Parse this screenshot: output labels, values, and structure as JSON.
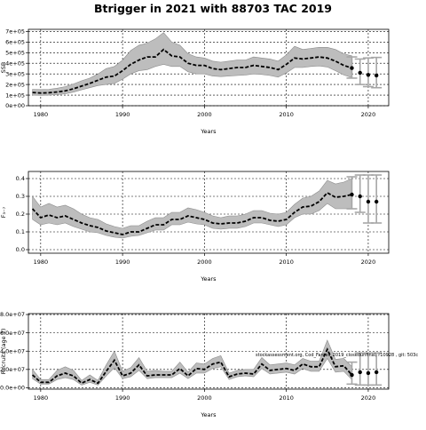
{
  "page_title": "Btrigger in 2021 with 88703 TAC 2019",
  "annotation": "stockassessment.org, Cod_Faroes_2019_closedunfinal, r10928 , git: 503c",
  "colors": {
    "band": "#bdbdbd",
    "band_edge": "#8c8c8c",
    "line": "#000000",
    "forecast_interval": "#a6a6a6",
    "point": "#000000",
    "grid": "#000000"
  },
  "chart_data": [
    {
      "type": "line",
      "title": "",
      "xlabel": "Years",
      "ylabel": "SSB",
      "xlim": [
        1978.5,
        2022.5
      ],
      "ylim": [
        0,
        720000
      ],
      "x_ticks": [
        1980,
        1990,
        2000,
        2010,
        2020
      ],
      "y_ticks": [
        0,
        100000,
        200000,
        300000,
        400000,
        500000,
        600000,
        700000
      ],
      "y_tick_labels": [
        "0e+00",
        "1e+05",
        "2e+05",
        "3e+05",
        "4e+05",
        "5e+05",
        "6e+05",
        "7e+05"
      ],
      "grid": true,
      "x": [
        1979,
        1980,
        1981,
        1982,
        1983,
        1984,
        1985,
        1986,
        1987,
        1988,
        1989,
        1990,
        1991,
        1992,
        1993,
        1994,
        1995,
        1996,
        1997,
        1998,
        1999,
        2000,
        2001,
        2002,
        2003,
        2004,
        2005,
        2006,
        2007,
        2008,
        2009,
        2010,
        2011,
        2012,
        2013,
        2014,
        2015,
        2016,
        2017,
        2018
      ],
      "estimate": [
        125000,
        120000,
        122000,
        130000,
        140000,
        160000,
        185000,
        210000,
        240000,
        270000,
        280000,
        330000,
        390000,
        430000,
        460000,
        460000,
        530000,
        470000,
        460000,
        400000,
        380000,
        380000,
        350000,
        340000,
        350000,
        360000,
        360000,
        380000,
        370000,
        360000,
        340000,
        390000,
        450000,
        440000,
        450000,
        460000,
        450000,
        420000,
        380000,
        355000
      ],
      "lower": [
        100000,
        98000,
        100000,
        105000,
        112000,
        128000,
        150000,
        170000,
        190000,
        200000,
        210000,
        250000,
        300000,
        330000,
        340000,
        370000,
        390000,
        370000,
        370000,
        320000,
        300000,
        300000,
        280000,
        275000,
        280000,
        285000,
        290000,
        300000,
        295000,
        285000,
        270000,
        310000,
        360000,
        360000,
        370000,
        375000,
        365000,
        330000,
        290000,
        265000
      ],
      "upper": [
        155000,
        152000,
        155000,
        165000,
        180000,
        205000,
        235000,
        260000,
        300000,
        350000,
        370000,
        430000,
        520000,
        570000,
        590000,
        630000,
        690000,
        600000,
        570000,
        490000,
        460000,
        450000,
        420000,
        410000,
        420000,
        430000,
        430000,
        460000,
        450000,
        440000,
        420000,
        480000,
        560000,
        530000,
        540000,
        550000,
        550000,
        530000,
        490000,
        470000
      ],
      "forecast": [
        {
          "year": 2018,
          "value": 355000,
          "low": 260000,
          "high": 460000
        },
        {
          "year": 2019,
          "value": 310000,
          "low": 200000,
          "high": 440000
        },
        {
          "year": 2020,
          "value": 290000,
          "low": 180000,
          "high": 450000
        },
        {
          "year": 2021,
          "value": 285000,
          "low": 170000,
          "high": 455000
        }
      ]
    },
    {
      "type": "line",
      "title": "",
      "xlabel": "Years",
      "ylabel": "F₃₋₇",
      "xlim": [
        1978.5,
        2022.5
      ],
      "ylim": [
        -0.02,
        0.44
      ],
      "x_ticks": [
        1980,
        1990,
        2000,
        2010,
        2020
      ],
      "y_ticks": [
        0.0,
        0.1,
        0.2,
        0.3,
        0.4
      ],
      "y_tick_labels": [
        "0.0",
        "0.1",
        "0.2",
        "0.3",
        "0.4"
      ],
      "grid": true,
      "x": [
        1979,
        1980,
        1981,
        1982,
        1983,
        1984,
        1985,
        1986,
        1987,
        1988,
        1989,
        1990,
        1991,
        1992,
        1993,
        1994,
        1995,
        1996,
        1997,
        1998,
        1999,
        2000,
        2001,
        2002,
        2003,
        2004,
        2005,
        2006,
        2007,
        2008,
        2009,
        2010,
        2011,
        2012,
        2013,
        2014,
        2015,
        2016,
        2017,
        2018
      ],
      "estimate": [
        0.23,
        0.18,
        0.195,
        0.18,
        0.19,
        0.17,
        0.15,
        0.135,
        0.125,
        0.105,
        0.095,
        0.085,
        0.1,
        0.1,
        0.12,
        0.14,
        0.14,
        0.17,
        0.17,
        0.19,
        0.18,
        0.17,
        0.15,
        0.145,
        0.15,
        0.15,
        0.16,
        0.18,
        0.18,
        0.165,
        0.16,
        0.17,
        0.21,
        0.24,
        0.245,
        0.27,
        0.32,
        0.295,
        0.3,
        0.31
      ],
      "lower": [
        0.17,
        0.14,
        0.15,
        0.14,
        0.15,
        0.13,
        0.115,
        0.1,
        0.095,
        0.08,
        0.07,
        0.065,
        0.075,
        0.08,
        0.095,
        0.11,
        0.11,
        0.14,
        0.14,
        0.155,
        0.145,
        0.14,
        0.12,
        0.115,
        0.12,
        0.12,
        0.13,
        0.15,
        0.15,
        0.14,
        0.13,
        0.14,
        0.18,
        0.2,
        0.2,
        0.22,
        0.26,
        0.23,
        0.23,
        0.23
      ],
      "upper": [
        0.3,
        0.24,
        0.26,
        0.24,
        0.25,
        0.23,
        0.2,
        0.18,
        0.17,
        0.145,
        0.13,
        0.12,
        0.135,
        0.135,
        0.16,
        0.18,
        0.18,
        0.21,
        0.21,
        0.235,
        0.225,
        0.21,
        0.19,
        0.18,
        0.19,
        0.19,
        0.2,
        0.22,
        0.22,
        0.205,
        0.2,
        0.21,
        0.255,
        0.29,
        0.3,
        0.33,
        0.39,
        0.37,
        0.38,
        0.4
      ],
      "forecast": [
        {
          "year": 2018,
          "value": 0.31,
          "low": 0.23,
          "high": 0.41
        },
        {
          "year": 2019,
          "value": 0.3,
          "low": 0.21,
          "high": 0.42
        },
        {
          "year": 2020,
          "value": 0.27,
          "low": 0.15,
          "high": 0.42
        },
        {
          "year": 2021,
          "value": 0.27,
          "low": 0.15,
          "high": 0.42
        }
      ]
    },
    {
      "type": "line",
      "title": "",
      "xlabel": "Years",
      "ylabel": "Recruits (age 2)",
      "xlim": [
        1978.5,
        2022.5
      ],
      "ylim": [
        -1500000.0,
        81000000.0
      ],
      "x_ticks": [
        1980,
        1990,
        2000,
        2010,
        2020
      ],
      "y_ticks": [
        0,
        20000000,
        40000000,
        60000000,
        80000000
      ],
      "y_tick_labels": [
        "0.0e+00",
        "2.0e+07",
        "4.0e+07",
        "6.0e+07",
        "8.0e+07"
      ],
      "grid": true,
      "x": [
        1979,
        1980,
        1981,
        1982,
        1983,
        1984,
        1985,
        1986,
        1987,
        1988,
        1989,
        1990,
        1991,
        1992,
        1993,
        1994,
        1995,
        1996,
        1997,
        1998,
        1999,
        2000,
        2001,
        2002,
        2003,
        2004,
        2005,
        2006,
        2007,
        2008,
        2009,
        2010,
        2011,
        2012,
        2013,
        2014,
        2015,
        2016,
        2017,
        2018
      ],
      "estimate": [
        14000000,
        6000000,
        6000000,
        13000000,
        16000000,
        13000000,
        5000000,
        9000000,
        5000000,
        18000000,
        30000000,
        13000000,
        16000000,
        25000000,
        13000000,
        14000000,
        14000000,
        14000000,
        21000000,
        13000000,
        21000000,
        20000000,
        26000000,
        28000000,
        12000000,
        15000000,
        16000000,
        15000000,
        26000000,
        19000000,
        20000000,
        21000000,
        19000000,
        26000000,
        23000000,
        23000000,
        42000000,
        23000000,
        24000000,
        14000000
      ],
      "lower": [
        10000000,
        4000000,
        4000000,
        9000000,
        11000000,
        9000000,
        3000000,
        6000000,
        3000000,
        13000000,
        22000000,
        10000000,
        12000000,
        19000000,
        10000000,
        11000000,
        11000000,
        11000000,
        16000000,
        10000000,
        16000000,
        16000000,
        21000000,
        23000000,
        9000000,
        12000000,
        13000000,
        12000000,
        21000000,
        15000000,
        16000000,
        17000000,
        15000000,
        21000000,
        18000000,
        18000000,
        32000000,
        17000000,
        18000000,
        9000000
      ],
      "upper": [
        20000000,
        9000000,
        9000000,
        19000000,
        23000000,
        19000000,
        8000000,
        14000000,
        8000000,
        25000000,
        40000000,
        18000000,
        22000000,
        33000000,
        18000000,
        19000000,
        18000000,
        18000000,
        28000000,
        17000000,
        27000000,
        26000000,
        32000000,
        35000000,
        16000000,
        19000000,
        20000000,
        20000000,
        33000000,
        25000000,
        26000000,
        27000000,
        25000000,
        32000000,
        29000000,
        29000000,
        52000000,
        31000000,
        32000000,
        23000000
      ],
      "forecast": [
        {
          "year": 2018,
          "value": 14000000,
          "low": 4000000,
          "high": 28000000
        },
        {
          "year": 2019,
          "value": 17000000,
          "low": 3000000,
          "high": 38000000
        },
        {
          "year": 2020,
          "value": 16000000,
          "low": 3000000,
          "high": 38000000
        },
        {
          "year": 2021,
          "value": 17000000,
          "low": 3000000,
          "high": 38000000
        }
      ]
    }
  ]
}
